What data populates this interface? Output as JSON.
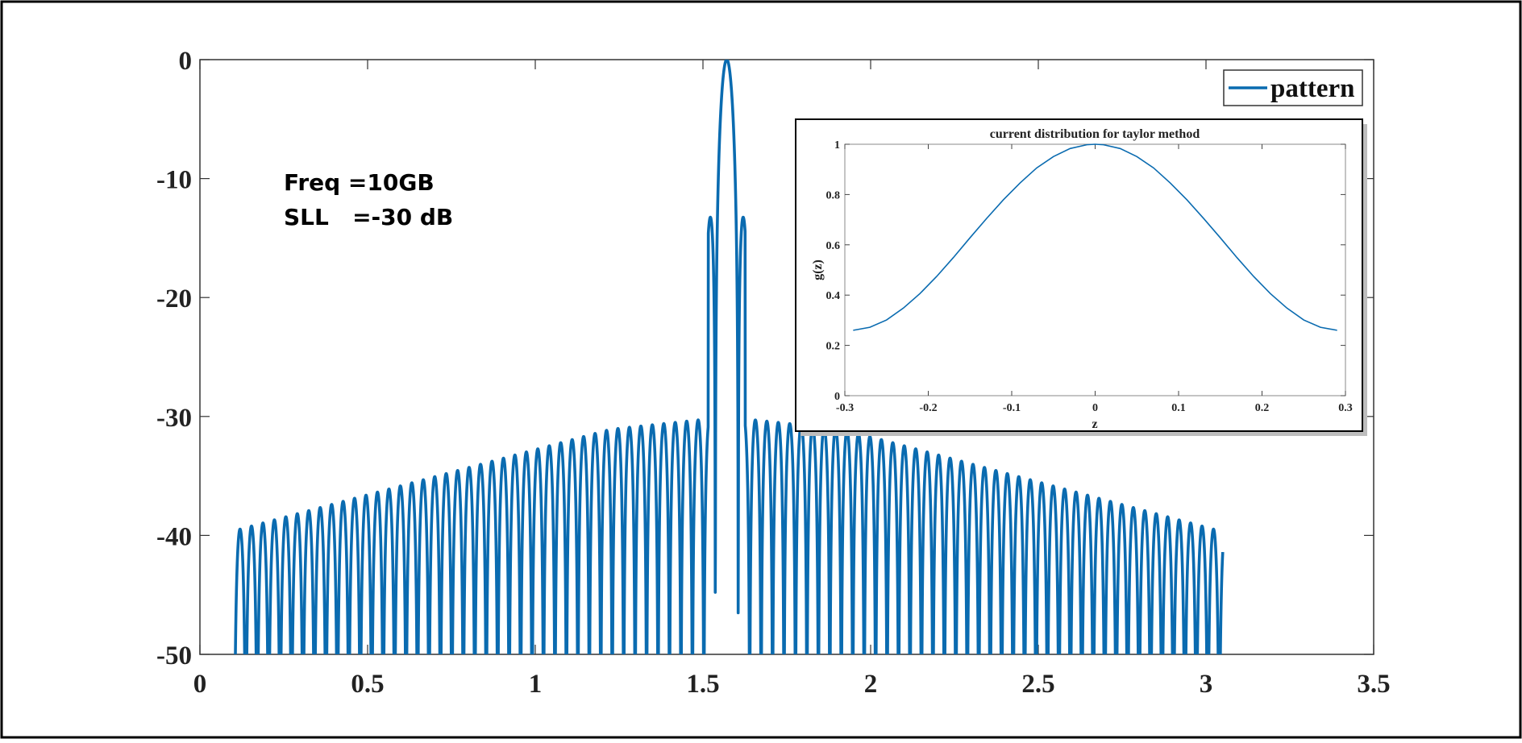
{
  "chart_data": [
    {
      "type": "line",
      "title": "",
      "xlabel": "",
      "ylabel": "",
      "xlim": [
        0,
        3.5
      ],
      "ylim": [
        -50,
        0
      ],
      "xticks": [
        0,
        0.5,
        1,
        1.5,
        2,
        2.5,
        3,
        3.5
      ],
      "xtick_labels": [
        "0",
        "0.5",
        "1",
        "1.5",
        "2",
        "2.5",
        "3",
        "3.5"
      ],
      "yticks": [
        0,
        -10,
        -20,
        -30,
        -40,
        -50
      ],
      "ytick_labels": [
        "0",
        "-10",
        "-20",
        "-30",
        "-40",
        "-50"
      ],
      "grid": false,
      "legend": {
        "position": "top-right",
        "entries": [
          "pattern"
        ]
      },
      "annotations": [
        "Freq =10GB",
        "SLL   =-30 dB"
      ],
      "series": [
        {
          "name": "pattern",
          "color": "#0a6bb0",
          "model": "taylor-like array factor (-30 dB sidelobes)",
          "x_range": [
            0.1,
            3.05
          ],
          "main_lobe": {
            "x": 1.571,
            "y": 0
          },
          "sidelobe_peaks": [
            {
              "x": 0.22,
              "y": -40.1
            },
            {
              "x": 0.385,
              "y": -39.7
            },
            {
              "x": 0.505,
              "y": -39.6
            },
            {
              "x": 0.605,
              "y": -39.6
            },
            {
              "x": 0.7,
              "y": -39.4
            },
            {
              "x": 0.787,
              "y": -38.9
            },
            {
              "x": 0.87,
              "y": -38.5
            },
            {
              "x": 0.948,
              "y": -38.3
            },
            {
              "x": 1.02,
              "y": -37.8
            },
            {
              "x": 1.09,
              "y": -37.3
            },
            {
              "x": 1.152,
              "y": -36.6
            },
            {
              "x": 1.21,
              "y": -35.8
            },
            {
              "x": 1.265,
              "y": -34.8
            },
            {
              "x": 1.315,
              "y": -33.6
            },
            {
              "x": 1.36,
              "y": -32.2
            },
            {
              "x": 1.405,
              "y": -31.2
            },
            {
              "x": 1.445,
              "y": -30.6
            },
            {
              "x": 1.48,
              "y": -30.2
            },
            {
              "x": 1.51,
              "y": -30.2
            },
            {
              "x": 1.632,
              "y": -30.2
            },
            {
              "x": 1.662,
              "y": -30.2
            },
            {
              "x": 1.697,
              "y": -30.6
            },
            {
              "x": 1.737,
              "y": -31.2
            },
            {
              "x": 1.782,
              "y": -32.2
            },
            {
              "x": 1.827,
              "y": -33.6
            },
            {
              "x": 1.877,
              "y": -34.8
            },
            {
              "x": 1.932,
              "y": -35.8
            },
            {
              "x": 1.99,
              "y": -36.6
            },
            {
              "x": 2.052,
              "y": -37.3
            },
            {
              "x": 2.122,
              "y": -37.8
            },
            {
              "x": 2.194,
              "y": -38.3
            },
            {
              "x": 2.272,
              "y": -38.5
            },
            {
              "x": 2.355,
              "y": -38.9
            },
            {
              "x": 2.442,
              "y": -39.4
            },
            {
              "x": 2.537,
              "y": -39.6
            },
            {
              "x": 2.637,
              "y": -39.6
            },
            {
              "x": 2.757,
              "y": -39.7
            },
            {
              "x": 2.922,
              "y": -40.1
            }
          ]
        }
      ]
    },
    {
      "type": "line",
      "title": "current distribution for taylor method",
      "xlabel": "z",
      "ylabel": "g(z)",
      "xlim": [
        -0.3,
        0.3
      ],
      "ylim": [
        0,
        1
      ],
      "xticks": [
        -0.3,
        -0.2,
        -0.1,
        0,
        0.1,
        0.2,
        0.3
      ],
      "xtick_labels": [
        "-0.3",
        "-0.2",
        "-0.1",
        "0",
        "0.1",
        "0.2",
        "0.3"
      ],
      "yticks": [
        0,
        0.2,
        0.4,
        0.6,
        0.8,
        1
      ],
      "ytick_labels": [
        "0",
        "0.2",
        "0.4",
        "0.6",
        "0.8",
        "1"
      ],
      "grid": false,
      "series": [
        {
          "color": "#0a6bb0",
          "x": [
            -0.29,
            -0.27,
            -0.25,
            -0.23,
            -0.21,
            -0.19,
            -0.17,
            -0.15,
            -0.13,
            -0.11,
            -0.09,
            -0.07,
            -0.05,
            -0.03,
            -0.01,
            0,
            0.01,
            0.03,
            0.05,
            0.07,
            0.09,
            0.11,
            0.13,
            0.15,
            0.17,
            0.19,
            0.21,
            0.23,
            0.25,
            0.27,
            0.29
          ],
          "y": [
            0.26,
            0.272,
            0.301,
            0.348,
            0.406,
            0.474,
            0.549,
            0.628,
            0.705,
            0.779,
            0.846,
            0.906,
            0.951,
            0.983,
            0.998,
            1.0,
            0.998,
            0.983,
            0.951,
            0.906,
            0.846,
            0.779,
            0.705,
            0.628,
            0.549,
            0.474,
            0.406,
            0.348,
            0.301,
            0.272,
            0.26
          ]
        }
      ]
    }
  ]
}
